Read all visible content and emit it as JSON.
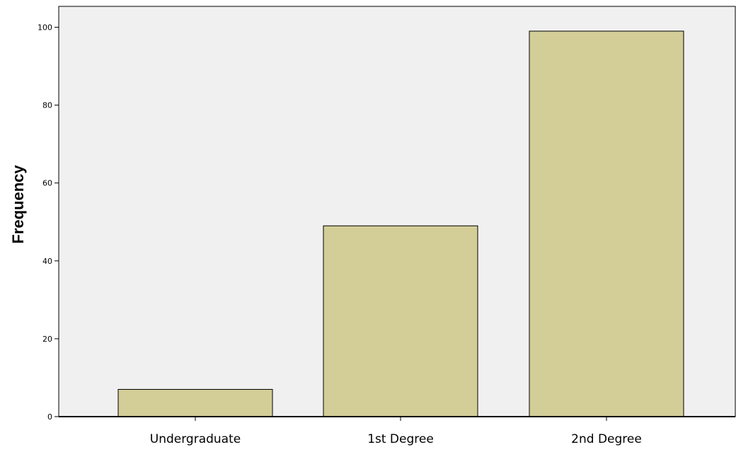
{
  "chart_data": {
    "type": "bar",
    "title": "",
    "xlabel": "",
    "ylabel": "Frequency",
    "categories": [
      "Undergraduate",
      "1st Degree",
      "2nd Degree"
    ],
    "values": [
      7,
      49,
      99
    ],
    "ylim": [
      0,
      100
    ],
    "yticks": [
      0,
      20,
      40,
      60,
      80,
      100
    ],
    "grid": false,
    "legend": "none",
    "colors": {
      "bar_fill": "#d3cd98",
      "bar_stroke": "#000000",
      "plot_background": "#f0f0f0",
      "axis": "#000000"
    }
  }
}
